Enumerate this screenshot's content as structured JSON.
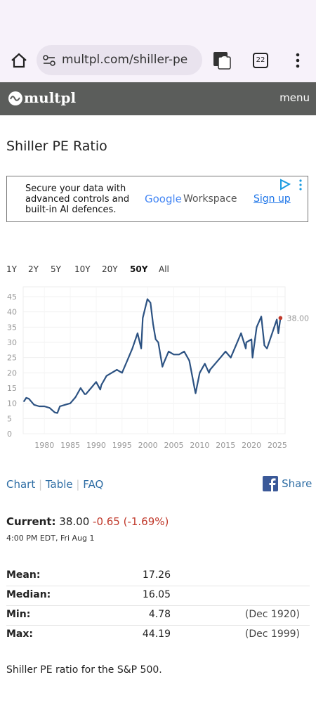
{
  "browser": {
    "url": "multpl.com/shiller-pe",
    "tab_count": "22"
  },
  "site": {
    "logo": "multpl",
    "menu": "menu"
  },
  "page_title": "Shiller PE Ratio",
  "ad": {
    "lines": [
      "Secure your data with",
      "advanced controls and",
      "built-in AI defences."
    ],
    "brand_google": "Google",
    "brand_workspace": "Workspace",
    "cta": "Sign up"
  },
  "ranges": [
    "1Y",
    "2Y",
    "5Y",
    "10Y",
    "20Y",
    "50Y",
    "All"
  ],
  "chart_data": {
    "type": "line",
    "x": [
      1976,
      1976.5,
      1977,
      1978,
      1979,
      1980,
      1981,
      1982,
      1982.5,
      1983,
      1984,
      1985,
      1986,
      1987,
      1987.8,
      1988,
      1989,
      1990,
      1990.8,
      1991,
      1992,
      1993,
      1994,
      1995,
      1996,
      1997,
      1998,
      1998.7,
      1999,
      1999.9,
      2000.5,
      2001,
      2001.5,
      2002,
      2002.8,
      2003,
      2004,
      2005,
      2006,
      2007,
      2008,
      2009,
      2009.2,
      2010,
      2011,
      2011.8,
      2012,
      2013,
      2014,
      2015,
      2016,
      2017,
      2018,
      2018.9,
      2019,
      2020,
      2020.2,
      2021,
      2021.9,
      2022.5,
      2023,
      2024,
      2024.9,
      2025.2,
      2025.6
    ],
    "series": [
      {
        "name": "Shiller PE",
        "color": "#2c5282",
        "values": [
          10.5,
          11.8,
          11.5,
          9.5,
          9,
          9,
          8.5,
          7,
          6.8,
          9,
          9.5,
          10,
          12,
          15,
          13,
          13,
          15,
          17,
          14.5,
          16,
          19,
          20,
          21,
          20,
          24,
          28,
          33,
          28,
          38,
          44.19,
          43,
          36,
          31,
          30,
          22,
          23,
          27,
          26,
          26,
          27,
          24,
          15,
          13.3,
          20,
          23,
          20,
          21,
          23,
          25,
          27,
          25,
          29,
          33,
          28,
          30,
          31,
          25,
          35,
          38.5,
          29,
          28,
          33,
          37.5,
          33,
          38
        ]
      }
    ],
    "end_label": "38.00",
    "end_color": "#c0392b",
    "xlim": [
      1975.9,
      2026.5
    ],
    "xticks": [
      1980,
      1985,
      1990,
      1995,
      2000,
      2005,
      2010,
      2015,
      2020,
      2025
    ],
    "ylim": [
      0,
      45
    ],
    "yticks": [
      0,
      5,
      10,
      15,
      20,
      25,
      30,
      35,
      40,
      45
    ],
    "grid": true
  },
  "links": {
    "chart": "Chart",
    "table": "Table",
    "faq": "FAQ",
    "share": "Share"
  },
  "current": {
    "label": "Current:",
    "value": "38.00",
    "change": "-0.65 (-1.69%)",
    "time": "4:00 PM EDT, Fri Aug 1"
  },
  "stats": [
    [
      "Mean:",
      "17.26",
      ""
    ],
    [
      "Median:",
      "16.05",
      ""
    ],
    [
      "Min:",
      "4.78",
      "(Dec 1920)"
    ],
    [
      "Max:",
      "44.19",
      "(Dec 1999)"
    ]
  ],
  "footer": "Shiller PE ratio for the S&P 500."
}
